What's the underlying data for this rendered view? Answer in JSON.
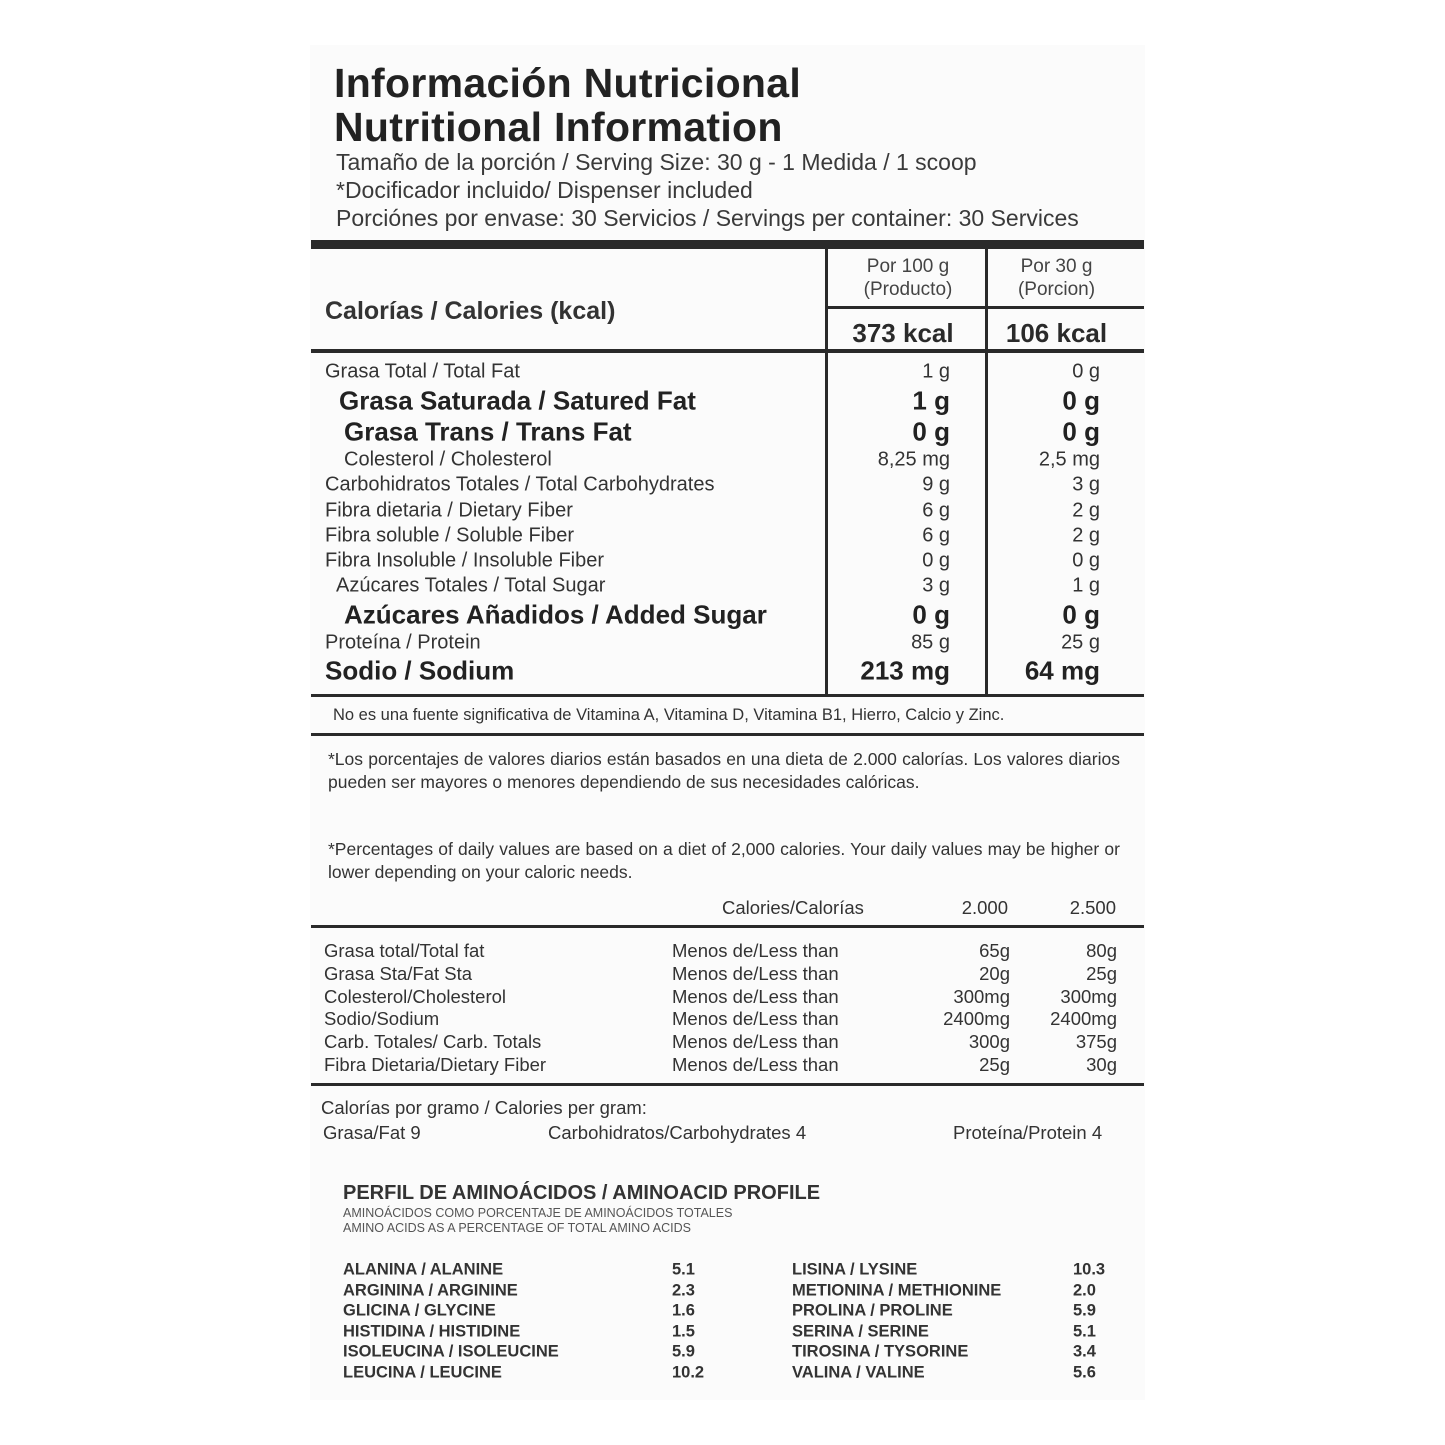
{
  "title_es": "Información Nutricional",
  "title_en": "Nutritional Information",
  "serving": [
    "Tamaño de la porción / Serving Size: 30 g - 1 Medida / 1 scoop",
    "*Docificador incluido/ Dispenser included",
    "Porciónes por envase: 30 Servicios / Servings per container: 30 Services"
  ],
  "calories": {
    "label": "Calorías / Calories (kcal)",
    "col1_header": [
      "Por 100 g",
      "(Producto)"
    ],
    "col2_header": [
      "Por 30 g",
      "(Porcion)"
    ],
    "col1_value": "373 kcal",
    "col2_value": "106 kcal"
  },
  "nutrients": [
    {
      "label": "Grasa Total / Total Fat",
      "per100": "1 g",
      "per30": "0 g",
      "style": "normal",
      "indent": 0
    },
    {
      "label": "Grasa Saturada / Satured Fat",
      "per100": "1 g",
      "per30": "0 g",
      "style": "bold",
      "indent": 14
    },
    {
      "label": "Grasa Trans / Trans Fat",
      "per100": "0 g",
      "per30": "0 g",
      "style": "bold",
      "indent": 19
    },
    {
      "label": "Colesterol / Cholesterol",
      "per100": "8,25 mg",
      "per30": "2,5 mg",
      "style": "normal",
      "indent": 19
    },
    {
      "label": "Carbohidratos Totales / Total Carbohydrates",
      "per100": "9 g",
      "per30": "3 g",
      "style": "normal",
      "indent": 0
    },
    {
      "label": "Fibra dietaria / Dietary Fiber",
      "per100": "6 g",
      "per30": "2 g",
      "style": "normal",
      "indent": 0
    },
    {
      "label": "Fibra soluble / Soluble Fiber",
      "per100": "6 g",
      "per30": "2 g",
      "style": "normal",
      "indent": 0
    },
    {
      "label": "Fibra Insoluble / Insoluble Fiber",
      "per100": "0 g",
      "per30": "0 g",
      "style": "normal",
      "indent": 0
    },
    {
      "label": "Azúcares Totales / Total Sugar",
      "per100": "3 g",
      "per30": "1 g",
      "style": "normal",
      "indent": 11
    },
    {
      "label": "Azúcares Añadidos / Added Sugar",
      "per100": "0 g",
      "per30": "0 g",
      "style": "bold",
      "indent": 19
    },
    {
      "label": "Proteína / Protein",
      "per100": "85 g",
      "per30": "25 g",
      "style": "normal",
      "indent": 0
    },
    {
      "label": "Sodio / Sodium",
      "per100": "213 mg",
      "per30": "64 mg",
      "style": "bold",
      "indent": 0
    }
  ],
  "not_significant": "No es una fuente significativa de  Vitamina A, Vitamina D, Vitamina B1, Hierro, Calcio y Zinc.",
  "footnote_es": "*Los porcentajes de valores diarios están basados en una dieta de 2.000 calorías. Los valores diarios pueden ser mayores o menores dependiendo de sus necesidades calóricas.",
  "footnote_en": "*Percentages of daily values are based on a diet of 2,000 calories. Your daily values may be higher or lower depending on your caloric needs.",
  "daily_values": {
    "header": {
      "label": "Calories/Calorías",
      "c1": "2.000",
      "c2": "2.500"
    },
    "rows": [
      {
        "label": "Grasa total/Total fat",
        "qualifier": "Menos de/Less than",
        "c1": "65g",
        "c2": "80g"
      },
      {
        "label": "Grasa Sta/Fat Sta",
        "qualifier": "Menos de/Less than",
        "c1": "20g",
        "c2": "25g"
      },
      {
        "label": "Colesterol/Cholesterol",
        "qualifier": "Menos de/Less than",
        "c1": "300mg",
        "c2": "300mg"
      },
      {
        "label": "Sodio/Sodium",
        "qualifier": "Menos de/Less than",
        "c1": "2400mg",
        "c2": "2400mg"
      },
      {
        "label": "Carb. Totales/ Carb. Totals",
        "qualifier": "Menos de/Less than",
        "c1": "300g",
        "c2": "375g"
      },
      {
        "label": "Fibra Dietaria/Dietary Fiber",
        "qualifier": "Menos de/Less than",
        "c1": "25g",
        "c2": "30g"
      }
    ]
  },
  "calories_per_gram": {
    "label": "Calorías por gramo / Calories per gram:",
    "fat": "Grasa/Fat 9",
    "carbs": "Carbohidratos/Carbohydrates 4",
    "protein": "Proteína/Protein 4"
  },
  "amino": {
    "title": "PERFIL DE AMINOÁCIDOS / AMINOACID PROFILE",
    "subtitle_es": "AMINOÁCIDOS COMO PORCENTAJE DE AMINOÁCIDOS TOTALES",
    "subtitle_en": "AMINO ACIDS AS A PERCENTAGE OF TOTAL AMINO ACIDS",
    "left": [
      {
        "name": "ALANINA / ALANINE",
        "value": "5.1"
      },
      {
        "name": "ARGININA / ARGININE",
        "value": "2.3"
      },
      {
        "name": "GLICINA / GLYCINE",
        "value": "1.6"
      },
      {
        "name": "HISTIDINA / HISTIDINE",
        "value": "1.5"
      },
      {
        "name": "ISOLEUCINA / ISOLEUCINE",
        "value": "5.9"
      },
      {
        "name": "LEUCINA / LEUCINE",
        "value": "10.2"
      }
    ],
    "right": [
      {
        "name": "LISINA / LYSINE",
        "value": "10.3"
      },
      {
        "name": "METIONINA / METHIONINE",
        "value": "2.0"
      },
      {
        "name": "PROLINA / PROLINE",
        "value": "5.9"
      },
      {
        "name": "SERINA / SERINE",
        "value": "5.1"
      },
      {
        "name": "TIROSINA / TYSORINE",
        "value": "3.4"
      },
      {
        "name": "VALINA / VALINE",
        "value": "5.6"
      }
    ]
  }
}
